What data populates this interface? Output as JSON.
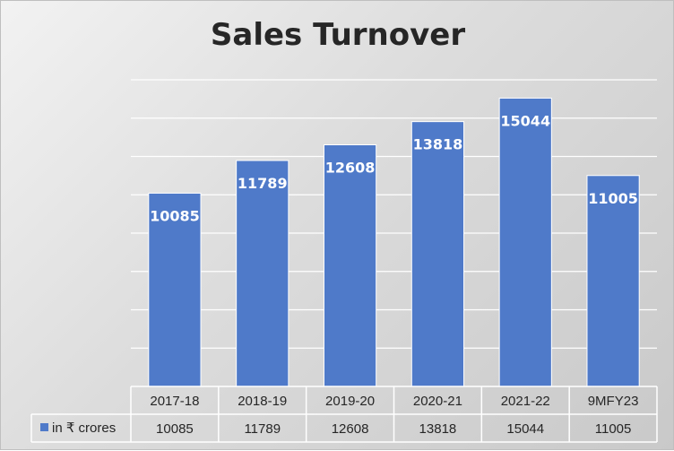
{
  "chart_data": {
    "type": "bar",
    "title": "Sales Turnover",
    "categories": [
      "2017-18",
      "2018-19",
      "2019-20",
      "2020-21",
      "2021-22",
      "9MFY23"
    ],
    "series": [
      {
        "name": "in ₹ crores",
        "values": [
          10085,
          11789,
          12608,
          13818,
          15044,
          11005
        ]
      }
    ],
    "data_table": true,
    "ylim": [
      0,
      16000
    ],
    "grid": true,
    "colors": {
      "bar": "#4f7ac9",
      "bar_border": "#ffffff",
      "grid": "#ffffff",
      "table_border": "#ffffff",
      "label": "#ffffff"
    }
  }
}
